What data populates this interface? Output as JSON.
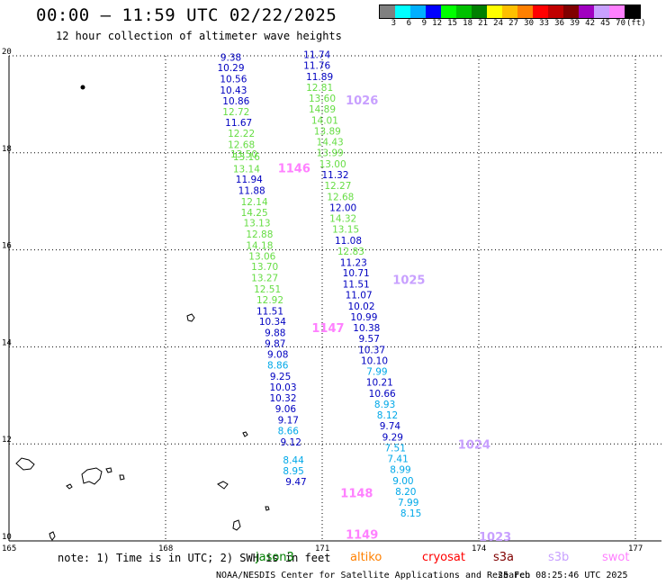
{
  "header": {
    "title": "00:00 – 11:59 UTC 02/22/2025",
    "subtitle": "12 hour collection of altimeter wave heights"
  },
  "legend": {
    "colors": [
      "#808080",
      "#00ffff",
      "#00b0ff",
      "#0000ff",
      "#00ff00",
      "#00c000",
      "#008000",
      "#ffff00",
      "#ffc000",
      "#ff8000",
      "#ff0000",
      "#c00000",
      "#800000",
      "#a000c0",
      "#c8a0ff",
      "#ff80ff",
      "#000000"
    ],
    "labels": [
      "3",
      "6",
      "9",
      "12",
      "15",
      "18",
      "21",
      "24",
      "27",
      "30",
      "33",
      "36",
      "39",
      "42",
      "45",
      "70"
    ],
    "unit": "(ft)"
  },
  "map": {
    "lon_range": [
      165,
      177.5
    ],
    "lat_range": [
      10,
      20
    ],
    "x_ticks": [
      "165",
      "168",
      "171",
      "174",
      "177"
    ],
    "y_ticks": [
      "20",
      "18",
      "16",
      "14",
      "12",
      "10"
    ]
  },
  "pass_labels": [
    {
      "text": "1026",
      "color": "#c8a0ff",
      "lon": 171.45,
      "lat": 19.0
    },
    {
      "text": "1146",
      "color": "#ff80ff",
      "lon": 170.15,
      "lat": 17.6
    },
    {
      "text": "1025",
      "color": "#c8a0ff",
      "lon": 172.35,
      "lat": 15.3
    },
    {
      "text": "1147",
      "color": "#ff80ff",
      "lon": 170.8,
      "lat": 14.3
    },
    {
      "text": "1024",
      "color": "#c8a0ff",
      "lon": 173.6,
      "lat": 11.9
    },
    {
      "text": "1148",
      "color": "#ff80ff",
      "lon": 171.35,
      "lat": 10.9
    },
    {
      "text": "1149",
      "color": "#ff80ff",
      "lon": 171.45,
      "lat": 10.05
    },
    {
      "text": "1023",
      "color": "#c8a0ff",
      "lon": 174.0,
      "lat": 10.0
    }
  ],
  "waves": [
    {
      "v": "9.38",
      "c": "#0000c0",
      "lon": 169.25,
      "lat": 19.9
    },
    {
      "v": "10.29",
      "c": "#0000c0",
      "lon": 169.25,
      "lat": 19.68
    },
    {
      "v": "10.56",
      "c": "#0000c0",
      "lon": 169.3,
      "lat": 19.45
    },
    {
      "v": "10.43",
      "c": "#0000c0",
      "lon": 169.3,
      "lat": 19.22
    },
    {
      "v": "10.86",
      "c": "#0000c0",
      "lon": 169.35,
      "lat": 19.0
    },
    {
      "v": "12.72",
      "c": "#66dd44",
      "lon": 169.35,
      "lat": 18.78
    },
    {
      "v": "11.67",
      "c": "#0000c0",
      "lon": 169.4,
      "lat": 18.55
    },
    {
      "v": "12.22",
      "c": "#66dd44",
      "lon": 169.45,
      "lat": 18.33
    },
    {
      "v": "12.68",
      "c": "#66dd44",
      "lon": 169.45,
      "lat": 18.1
    },
    {
      "v": "13.50",
      "c": "#66dd44",
      "lon": 169.5,
      "lat": 17.9
    },
    {
      "v": "13.16",
      "c": "#66dd44",
      "lon": 169.55,
      "lat": 17.85
    },
    {
      "v": "13.14",
      "c": "#66dd44",
      "lon": 169.55,
      "lat": 17.6
    },
    {
      "v": "11.94",
      "c": "#0000c0",
      "lon": 169.6,
      "lat": 17.38
    },
    {
      "v": "11.88",
      "c": "#0000c0",
      "lon": 169.65,
      "lat": 17.15
    },
    {
      "v": "12.14",
      "c": "#66dd44",
      "lon": 169.7,
      "lat": 16.92
    },
    {
      "v": "14.25",
      "c": "#66dd44",
      "lon": 169.7,
      "lat": 16.7
    },
    {
      "v": "13.13",
      "c": "#66dd44",
      "lon": 169.75,
      "lat": 16.48
    },
    {
      "v": "12.88",
      "c": "#66dd44",
      "lon": 169.8,
      "lat": 16.25
    },
    {
      "v": "14.18",
      "c": "#66dd44",
      "lon": 169.8,
      "lat": 16.02
    },
    {
      "v": "13.06",
      "c": "#66dd44",
      "lon": 169.85,
      "lat": 15.8
    },
    {
      "v": "13.70",
      "c": "#66dd44",
      "lon": 169.9,
      "lat": 15.58
    },
    {
      "v": "13.27",
      "c": "#66dd44",
      "lon": 169.9,
      "lat": 15.35
    },
    {
      "v": "12.51",
      "c": "#66dd44",
      "lon": 169.95,
      "lat": 15.12
    },
    {
      "v": "12.92",
      "c": "#66dd44",
      "lon": 170.0,
      "lat": 14.9
    },
    {
      "v": "11.51",
      "c": "#0000c0",
      "lon": 170.0,
      "lat": 14.67
    },
    {
      "v": "10.34",
      "c": "#0000c0",
      "lon": 170.05,
      "lat": 14.45
    },
    {
      "v": "9.88",
      "c": "#0000c0",
      "lon": 170.1,
      "lat": 14.22
    },
    {
      "v": "9.87",
      "c": "#0000c0",
      "lon": 170.1,
      "lat": 14.0
    },
    {
      "v": "9.08",
      "c": "#0000c0",
      "lon": 170.15,
      "lat": 13.78
    },
    {
      "v": "8.86",
      "c": "#00a8e8",
      "lon": 170.15,
      "lat": 13.55
    },
    {
      "v": "9.25",
      "c": "#0000c0",
      "lon": 170.2,
      "lat": 13.32
    },
    {
      "v": "10.03",
      "c": "#0000c0",
      "lon": 170.25,
      "lat": 13.1
    },
    {
      "v": "10.32",
      "c": "#0000c0",
      "lon": 170.25,
      "lat": 12.88
    },
    {
      "v": "9.06",
      "c": "#0000c0",
      "lon": 170.3,
      "lat": 12.65
    },
    {
      "v": "9.17",
      "c": "#0000c0",
      "lon": 170.35,
      "lat": 12.42
    },
    {
      "v": "8.66",
      "c": "#00a8e8",
      "lon": 170.35,
      "lat": 12.2
    },
    {
      "v": "9.12",
      "c": "#0000c0",
      "lon": 170.4,
      "lat": 11.97
    },
    {
      "v": "8.44",
      "c": "#00a8e8",
      "lon": 170.45,
      "lat": 11.6
    },
    {
      "v": "8.95",
      "c": "#00a8e8",
      "lon": 170.45,
      "lat": 11.37
    },
    {
      "v": "9.47",
      "c": "#0000c0",
      "lon": 170.5,
      "lat": 11.15
    },
    {
      "v": "11.74",
      "c": "#0000c0",
      "lon": 170.9,
      "lat": 19.95
    },
    {
      "v": "11.76",
      "c": "#0000c0",
      "lon": 170.9,
      "lat": 19.73
    },
    {
      "v": "11.89",
      "c": "#0000c0",
      "lon": 170.95,
      "lat": 19.5
    },
    {
      "v": "12.81",
      "c": "#66dd44",
      "lon": 170.95,
      "lat": 19.28
    },
    {
      "v": "13.60",
      "c": "#66dd44",
      "lon": 171.0,
      "lat": 19.05
    },
    {
      "v": "14.89",
      "c": "#66dd44",
      "lon": 171.0,
      "lat": 18.83
    },
    {
      "v": "14.01",
      "c": "#66dd44",
      "lon": 171.05,
      "lat": 18.6
    },
    {
      "v": "13.89",
      "c": "#66dd44",
      "lon": 171.1,
      "lat": 18.38
    },
    {
      "v": "14.43",
      "c": "#66dd44",
      "lon": 171.15,
      "lat": 18.15
    },
    {
      "v": "13.99",
      "c": "#66dd44",
      "lon": 171.15,
      "lat": 17.93
    },
    {
      "v": "13.00",
      "c": "#66dd44",
      "lon": 171.2,
      "lat": 17.7
    },
    {
      "v": "11.32",
      "c": "#0000c0",
      "lon": 171.25,
      "lat": 17.48
    },
    {
      "v": "12.27",
      "c": "#66dd44",
      "lon": 171.3,
      "lat": 17.25
    },
    {
      "v": "12.68",
      "c": "#66dd44",
      "lon": 171.35,
      "lat": 17.02
    },
    {
      "v": "12.00",
      "c": "#0000c0",
      "lon": 171.4,
      "lat": 16.8
    },
    {
      "v": "14.32",
      "c": "#66dd44",
      "lon": 171.4,
      "lat": 16.58
    },
    {
      "v": "13.15",
      "c": "#66dd44",
      "lon": 171.45,
      "lat": 16.35
    },
    {
      "v": "11.08",
      "c": "#0000c0",
      "lon": 171.5,
      "lat": 16.12
    },
    {
      "v": "12.83",
      "c": "#66dd44",
      "lon": 171.55,
      "lat": 15.9
    },
    {
      "v": "11.23",
      "c": "#0000c0",
      "lon": 171.6,
      "lat": 15.67
    },
    {
      "v": "10.71",
      "c": "#0000c0",
      "lon": 171.65,
      "lat": 15.45
    },
    {
      "v": "11.51",
      "c": "#0000c0",
      "lon": 171.65,
      "lat": 15.22
    },
    {
      "v": "11.07",
      "c": "#0000c0",
      "lon": 171.7,
      "lat": 15.0
    },
    {
      "v": "10.02",
      "c": "#0000c0",
      "lon": 171.75,
      "lat": 14.77
    },
    {
      "v": "10.99",
      "c": "#0000c0",
      "lon": 171.8,
      "lat": 14.55
    },
    {
      "v": "10.38",
      "c": "#0000c0",
      "lon": 171.85,
      "lat": 14.32
    },
    {
      "v": "9.57",
      "c": "#0000c0",
      "lon": 171.9,
      "lat": 14.1
    },
    {
      "v": "10.37",
      "c": "#0000c0",
      "lon": 171.95,
      "lat": 13.87
    },
    {
      "v": "10.10",
      "c": "#0000c0",
      "lon": 172.0,
      "lat": 13.65
    },
    {
      "v": "7.99",
      "c": "#00a8e8",
      "lon": 172.05,
      "lat": 13.42
    },
    {
      "v": "10.21",
      "c": "#0000c0",
      "lon": 172.1,
      "lat": 13.2
    },
    {
      "v": "10.66",
      "c": "#0000c0",
      "lon": 172.15,
      "lat": 12.97
    },
    {
      "v": "8.93",
      "c": "#00a8e8",
      "lon": 172.2,
      "lat": 12.75
    },
    {
      "v": "8.12",
      "c": "#00a8e8",
      "lon": 172.25,
      "lat": 12.52
    },
    {
      "v": "9.74",
      "c": "#0000c0",
      "lon": 172.3,
      "lat": 12.3
    },
    {
      "v": "9.29",
      "c": "#0000c0",
      "lon": 172.35,
      "lat": 12.07
    },
    {
      "v": "7.51",
      "c": "#00a8e8",
      "lon": 172.4,
      "lat": 11.85
    },
    {
      "v": "7.41",
      "c": "#00a8e8",
      "lon": 172.45,
      "lat": 11.62
    },
    {
      "v": "8.99",
      "c": "#00a8e8",
      "lon": 172.5,
      "lat": 11.4
    },
    {
      "v": "9.00",
      "c": "#00a8e8",
      "lon": 172.55,
      "lat": 11.17
    },
    {
      "v": "8.20",
      "c": "#00a8e8",
      "lon": 172.6,
      "lat": 10.95
    },
    {
      "v": "7.99",
      "c": "#00a8e8",
      "lon": 172.65,
      "lat": 10.72
    },
    {
      "v": "8.15",
      "c": "#00a8e8",
      "lon": 172.7,
      "lat": 10.5
    }
  ],
  "footer": {
    "note": "note: 1) Time is in UTC; 2) SWH is in feet",
    "satellites": [
      {
        "name": "jason3",
        "color": "#008000"
      },
      {
        "name": "altiko",
        "color": "#ff8000"
      },
      {
        "name": "cryosat",
        "color": "#ff0000"
      },
      {
        "name": "s3a",
        "color": "#800000"
      },
      {
        "name": "s3b",
        "color": "#c8a0ff"
      },
      {
        "name": "swot",
        "color": "#ff80ff"
      }
    ],
    "credit": "NOAA/NESDIS Center for Satellite Applications and Research",
    "timestamp": "25 Feb 08:25:46 UTC 2025"
  }
}
